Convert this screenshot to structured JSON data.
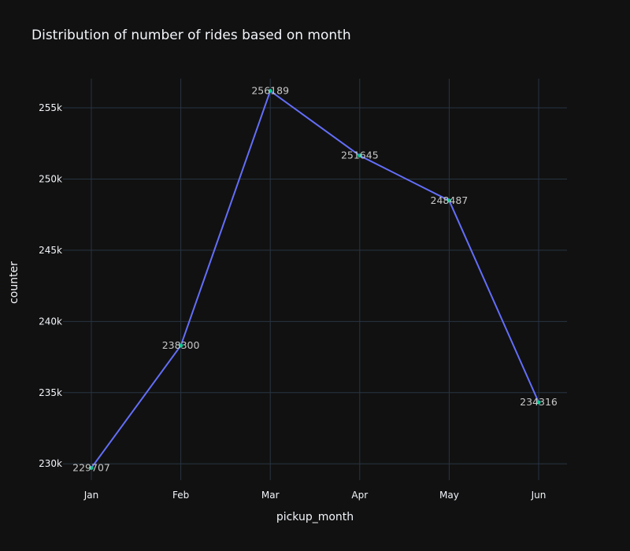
{
  "chart_data": {
    "type": "line",
    "title": "Distribution of number of rides based on month",
    "xlabel": "pickup_month",
    "ylabel": "counter",
    "categories": [
      "Jan",
      "Feb",
      "Mar",
      "Apr",
      "May",
      "Jun"
    ],
    "series": [
      {
        "values": [
          229707,
          238300,
          256189,
          251645,
          248487,
          234316
        ],
        "data_labels": [
          "229707",
          "238300",
          "256189",
          "251645",
          "248487",
          "234316"
        ],
        "line_color": "#636efa",
        "marker_color": "#00cc96"
      }
    ],
    "yticks": [
      {
        "value": 230000,
        "label": "230k"
      },
      {
        "value": 235000,
        "label": "235k"
      },
      {
        "value": 240000,
        "label": "240k"
      },
      {
        "value": 245000,
        "label": "245k"
      },
      {
        "value": 250000,
        "label": "250k"
      },
      {
        "value": 255000,
        "label": "255k"
      }
    ],
    "ylim": [
      228850,
      257046
    ],
    "grid": true,
    "legend": "none",
    "colors": {
      "background": "#111111",
      "grid": "#283442",
      "text": "#f2f5fa",
      "data_label": "#c8c8c8"
    }
  }
}
